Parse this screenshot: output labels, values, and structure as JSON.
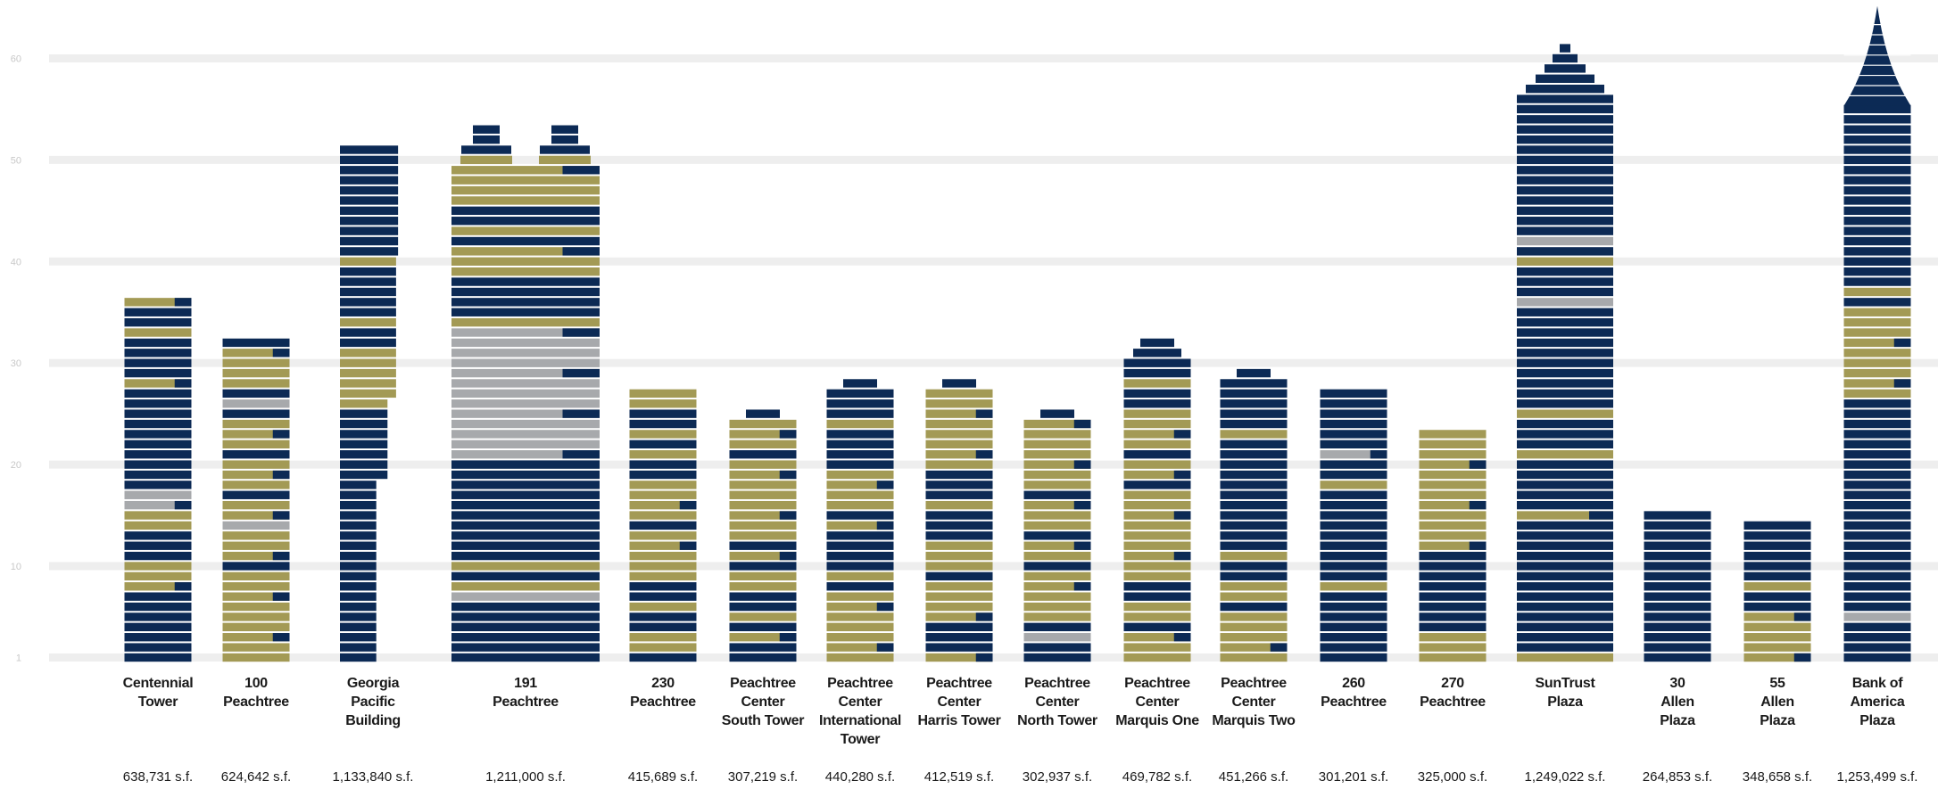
{
  "chart_data": {
    "type": "bar",
    "title": "",
    "xlabel": "",
    "ylabel": "",
    "ylim": [
      0,
      64
    ],
    "yticks": [
      1,
      10,
      20,
      30,
      40,
      50,
      60
    ],
    "grid": true,
    "colors": {
      "occupied": "#0c2a55",
      "available": "#a39a55",
      "other": "#a7a9ac",
      "grid": "#eeeeee"
    },
    "buildings": [
      {
        "name": [
          "Centennial",
          "Tower"
        ],
        "area": "638,731 s.f.",
        "floors": 36,
        "available": [
          [
            8,
            10
          ],
          [
            14,
            15
          ],
          [
            28,
            28
          ],
          [
            33,
            33
          ],
          [
            36,
            36
          ]
        ],
        "other": [
          [
            16,
            17
          ]
        ]
      },
      {
        "name": [
          "100",
          "Peachtree"
        ],
        "area": "624,642 s.f.",
        "floors": 32,
        "available": [
          [
            1,
            9
          ],
          [
            11,
            13
          ],
          [
            15,
            16
          ],
          [
            18,
            20
          ],
          [
            22,
            24
          ],
          [
            28,
            31
          ]
        ],
        "other": [
          [
            14,
            14
          ],
          [
            26,
            26
          ]
        ]
      },
      {
        "name": [
          "Georgia",
          "Pacific",
          "Building"
        ],
        "area": "1,133,840 s.f.",
        "floors": 51,
        "available": [
          [
            26,
            31
          ],
          [
            34,
            34
          ],
          [
            40,
            40
          ]
        ],
        "other": []
      },
      {
        "name": [
          "191",
          "Peachtree"
        ],
        "area": "1,211,000 s.f.",
        "floors": 49,
        "available": [
          [
            8,
            8
          ],
          [
            10,
            10
          ],
          [
            34,
            34
          ],
          [
            39,
            41
          ],
          [
            43,
            43
          ],
          [
            46,
            49
          ]
        ],
        "other": [
          [
            7,
            7
          ],
          [
            21,
            33
          ]
        ]
      },
      {
        "name": [
          "230",
          "Peachtree"
        ],
        "area": "415,689 s.f.",
        "floors": 27,
        "available": [
          [
            2,
            3
          ],
          [
            6,
            6
          ],
          [
            9,
            13
          ],
          [
            15,
            18
          ],
          [
            21,
            21
          ],
          [
            23,
            23
          ],
          [
            26,
            27
          ]
        ],
        "other": []
      },
      {
        "name": [
          "Peachtree",
          "Center",
          "South Tower"
        ],
        "area": "307,219 s.f.",
        "floors": 24,
        "available": [
          [
            3,
            3
          ],
          [
            5,
            5
          ],
          [
            8,
            9
          ],
          [
            11,
            11
          ],
          [
            13,
            20
          ],
          [
            22,
            24
          ]
        ],
        "other": []
      },
      {
        "name": [
          "Peachtree",
          "Center",
          "International",
          "Tower"
        ],
        "area": "440,280 s.f.",
        "floors": 27,
        "available": [
          [
            1,
            7
          ],
          [
            9,
            9
          ],
          [
            14,
            14
          ],
          [
            16,
            19
          ],
          [
            24,
            24
          ]
        ],
        "other": []
      },
      {
        "name": [
          "Peachtree",
          "Center",
          "Harris Tower"
        ],
        "area": "412,519 s.f.",
        "floors": 27,
        "available": [
          [
            1,
            1
          ],
          [
            5,
            8
          ],
          [
            10,
            12
          ],
          [
            16,
            16
          ],
          [
            20,
            27
          ]
        ],
        "other": []
      },
      {
        "name": [
          "Peachtree",
          "Center",
          "North Tower"
        ],
        "area": "302,937 s.f.",
        "floors": 24,
        "available": [
          [
            5,
            9
          ],
          [
            11,
            12
          ],
          [
            14,
            16
          ],
          [
            18,
            24
          ]
        ],
        "other": [
          [
            3,
            3
          ]
        ]
      },
      {
        "name": [
          "Peachtree",
          "Center",
          "Marquis One"
        ],
        "area": "469,782 s.f.",
        "floors": 30,
        "available": [
          [
            1,
            3
          ],
          [
            5,
            6
          ],
          [
            9,
            17
          ],
          [
            19,
            20
          ],
          [
            22,
            25
          ],
          [
            28,
            28
          ]
        ],
        "other": []
      },
      {
        "name": [
          "Peachtree",
          "Center",
          "Marquis Two"
        ],
        "area": "451,266 s.f.",
        "floors": 28,
        "available": [
          [
            1,
            5
          ],
          [
            7,
            8
          ],
          [
            11,
            11
          ],
          [
            23,
            23
          ]
        ],
        "other": []
      },
      {
        "name": [
          "260",
          "Peachtree"
        ],
        "area": "301,201 s.f.",
        "floors": 27,
        "available": [
          [
            8,
            8
          ],
          [
            18,
            18
          ]
        ],
        "other": [
          [
            21,
            21
          ]
        ]
      },
      {
        "name": [
          "270",
          "Peachtree"
        ],
        "area": "325,000 s.f.",
        "floors": 23,
        "available": [
          [
            1,
            3
          ],
          [
            12,
            23
          ]
        ],
        "other": []
      },
      {
        "name": [
          "SunTrust",
          "Plaza"
        ],
        "area": "1,249,022 s.f.",
        "floors": 56,
        "available": [
          [
            1,
            1
          ],
          [
            15,
            15
          ],
          [
            21,
            21
          ],
          [
            25,
            25
          ],
          [
            40,
            40
          ]
        ],
        "other": [
          [
            36,
            36
          ],
          [
            42,
            42
          ]
        ]
      },
      {
        "name": [
          "30",
          "Allen",
          "Plaza"
        ],
        "area": "264,853 s.f.",
        "floors": 15,
        "available": [],
        "other": []
      },
      {
        "name": [
          "55",
          "Allen",
          "Plaza"
        ],
        "area": "348,658 s.f.",
        "floors": 14,
        "available": [
          [
            1,
            5
          ],
          [
            8,
            8
          ]
        ],
        "other": []
      },
      {
        "name": [
          "Bank of",
          "America",
          "Plaza"
        ],
        "area": "1,253,499 s.f.",
        "floors": 55,
        "available": [
          [
            27,
            35
          ],
          [
            37,
            37
          ]
        ],
        "other": [
          [
            5,
            5
          ]
        ]
      }
    ]
  }
}
